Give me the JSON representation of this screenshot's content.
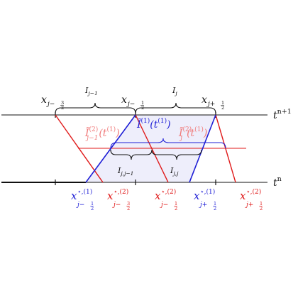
{
  "time_levels": {
    "upper": {
      "base": "t",
      "sup": "n+1"
    },
    "lower": {
      "base": "t",
      "sup": "n"
    }
  },
  "top_nodes": [
    {
      "base": "x",
      "sub": "j−",
      "frac_num": "3",
      "frac_den": "2"
    },
    {
      "base": "x",
      "sub": "j−",
      "frac_num": "1",
      "frac_den": "2"
    },
    {
      "base": "x",
      "sub": "j+",
      "frac_num": "1",
      "frac_den": "2"
    }
  ],
  "top_cells": [
    {
      "base": "I",
      "sub": "j−1"
    },
    {
      "base": "I",
      "sub": "j"
    }
  ],
  "lower_cells": [
    {
      "base": "I",
      "sub": "j,j−1"
    },
    {
      "base": "I",
      "sub": "j,j"
    }
  ],
  "middle_labels": {
    "left_red": {
      "base": "Ĩ",
      "sup": "(2)",
      "sub": "j−1",
      "arg": "(t",
      "arg_sup": "(1)",
      "arg_end": ")"
    },
    "center_blue": {
      "base": "Ĩ",
      "sup": "(1)",
      "arg": "(t",
      "arg_sup": "(1)",
      "arg_end": ")"
    },
    "right_red": {
      "base": "Ĩ",
      "sup": "(2)",
      "sub": "j",
      "arg": "(t",
      "arg_sup": "(1)",
      "arg_end": ")"
    }
  },
  "bottom_nodes": [
    {
      "base": "x",
      "sup": "⋆,(1)",
      "sub": "j−",
      "frac_num": "1",
      "frac_den": "2",
      "color": "#1f1fd6"
    },
    {
      "base": "x",
      "sup": "⋆,(2)",
      "sub": "j−",
      "frac_num": "3",
      "frac_den": "2",
      "color": "#e01a1a"
    },
    {
      "base": "x",
      "sup": "⋆,(2)",
      "sub": "j−",
      "frac_num": "1",
      "frac_den": "2",
      "color": "#e01a1a"
    },
    {
      "base": "x",
      "sup": "⋆,(1)",
      "sub": "j+",
      "frac_num": "1",
      "frac_den": "2",
      "color": "#1f1fd6"
    },
    {
      "base": "x",
      "sup": "⋆,(2)",
      "sub": "j+",
      "frac_num": "1",
      "frac_den": "2",
      "color": "#e01a1a"
    }
  ],
  "colors": {
    "blue": "#1f1fd6",
    "red": "#e01a1a",
    "light_red": "#f07a7a",
    "fill": "#eeeefb"
  }
}
